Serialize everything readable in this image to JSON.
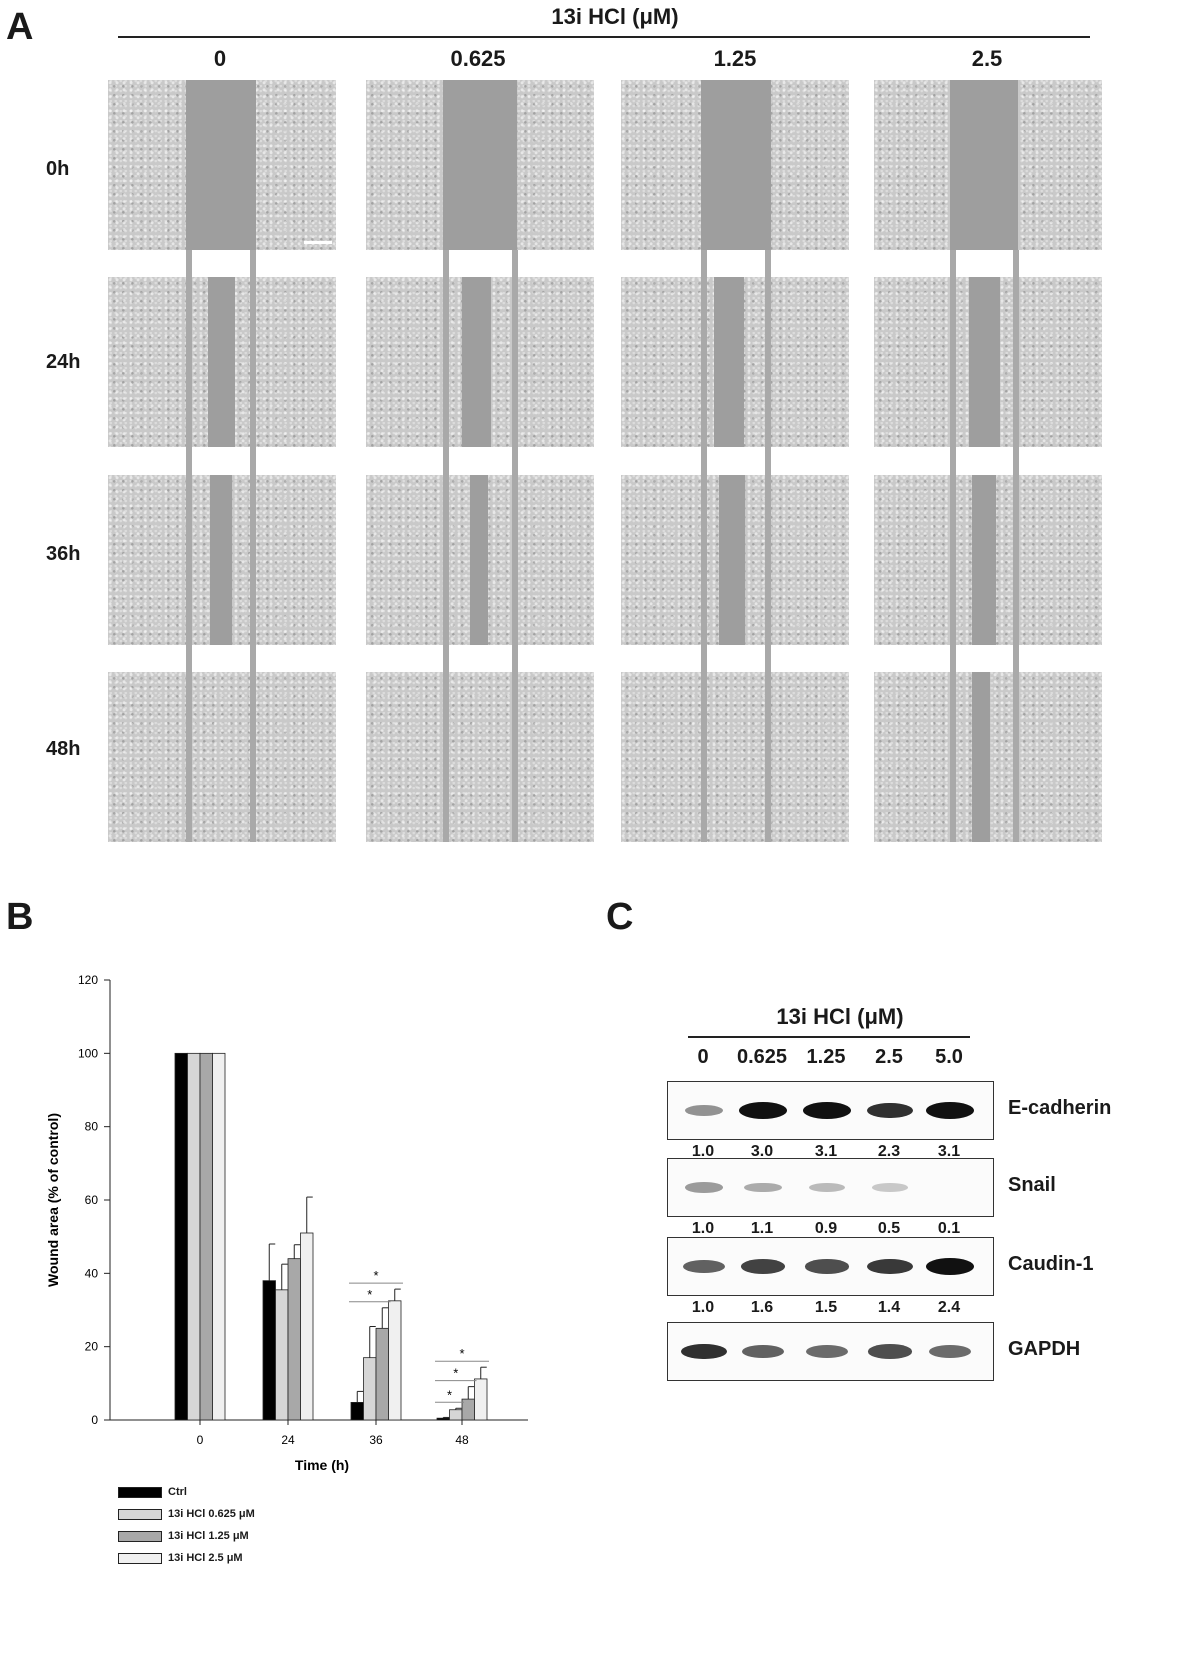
{
  "panels": {
    "a": "A",
    "b": "B",
    "c": "C"
  },
  "panel_a": {
    "treatment_title": "13i HCl (μM)",
    "columns": [
      "0",
      "0.625",
      "1.25",
      "2.5"
    ],
    "rows": [
      "0h",
      "24h",
      "36h",
      "48h"
    ],
    "colors": {
      "cells": "#c9c9c9",
      "wound": "#9e9e9e",
      "guide_line": "#a9a9a9"
    }
  },
  "chart_data": {
    "type": "bar",
    "categories": [
      "0",
      "24",
      "36",
      "48"
    ],
    "xlabel": "Time (h)",
    "ylabel": "Wound area (% of control)",
    "ylim": [
      0,
      120
    ],
    "yticks": [
      "0",
      "20",
      "40",
      "60",
      "80",
      "100",
      "120"
    ],
    "series": [
      {
        "name": "Ctrl",
        "values": [
          100,
          38,
          4.8,
          0.5
        ],
        "errors": [
          0,
          10,
          3,
          0.2
        ],
        "color": "#000000"
      },
      {
        "name": "13i HCl 0.625 μM",
        "values": [
          100,
          35.5,
          17,
          2.8
        ],
        "errors": [
          0,
          7,
          8.5,
          0.4
        ],
        "color": "#d6d6d6"
      },
      {
        "name": "13i HCl 1.25 μM",
        "values": [
          100,
          44,
          25,
          5.7
        ],
        "errors": [
          0,
          3.8,
          5.6,
          3.4
        ],
        "color": "#a8a8a8"
      },
      {
        "name": "13i HCl 2.5 μM",
        "values": [
          100,
          51,
          32.5,
          11.2
        ],
        "errors": [
          0,
          9.8,
          3.2,
          3.2
        ],
        "color": "#f0f0f0"
      }
    ],
    "significance": [
      {
        "category": "36",
        "from_series": 0,
        "to_series": 2,
        "label": "*"
      },
      {
        "category": "36",
        "from_series": 0,
        "to_series": 3,
        "label": "*"
      },
      {
        "category": "48",
        "from_series": 0,
        "to_series": 1,
        "label": "*"
      },
      {
        "category": "48",
        "from_series": 0,
        "to_series": 2,
        "label": "*"
      },
      {
        "category": "48",
        "from_series": 0,
        "to_series": 3,
        "label": "*"
      }
    ],
    "legend_position": "bottom-left"
  },
  "panel_c": {
    "treatment_title": "13i HCl (μM)",
    "lanes": [
      "0",
      "0.625",
      "1.25",
      "2.5",
      "5.0"
    ],
    "blots": [
      {
        "label": "E-cadherin",
        "intensities": [
          0.35,
          1.0,
          1.0,
          0.85,
          1.0
        ],
        "quant": [
          "1.0",
          "3.0",
          "3.1",
          "2.3",
          "3.1"
        ]
      },
      {
        "label": "Snail",
        "intensities": [
          0.3,
          0.22,
          0.15,
          0.08,
          0.0
        ],
        "quant": [
          "1.0",
          "1.1",
          "0.9",
          "0.5",
          "0.1"
        ]
      },
      {
        "label": "Caudin-1",
        "intensities": [
          0.6,
          0.75,
          0.7,
          0.8,
          1.0
        ],
        "quant": [
          "1.0",
          "1.6",
          "1.5",
          "1.4",
          "2.4"
        ]
      },
      {
        "label": "GAPDH",
        "intensities": [
          0.85,
          0.6,
          0.55,
          0.7,
          0.55
        ],
        "quant": []
      }
    ]
  }
}
